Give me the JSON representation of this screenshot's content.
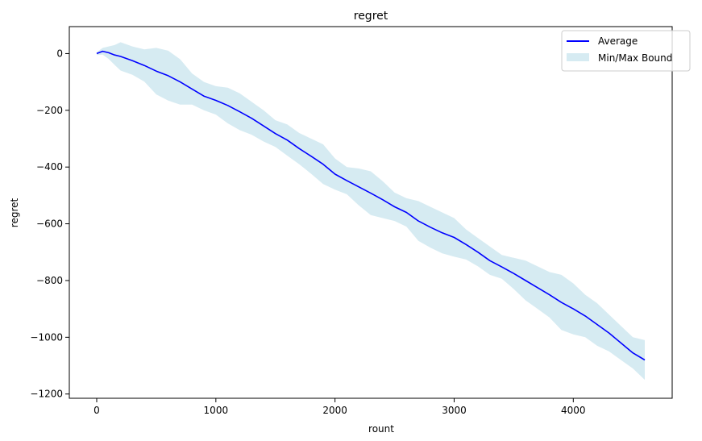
{
  "chart_data": {
    "type": "line",
    "title": "regret",
    "xlabel": "rount",
    "ylabel": "regret",
    "xlim": [
      -230,
      4830
    ],
    "ylim": [
      -1215,
      95
    ],
    "xticks": [
      0,
      1000,
      2000,
      3000,
      4000
    ],
    "xtick_labels": [
      "0",
      "1000",
      "2000",
      "3000",
      "4000"
    ],
    "yticks": [
      0,
      -200,
      -400,
      -600,
      -800,
      -1000,
      -1200
    ],
    "ytick_labels": [
      "0",
      "−200",
      "−400",
      "−600",
      "−800",
      "−1000",
      "−1200"
    ],
    "grid": false,
    "legend_position": "top-right",
    "series": [
      {
        "name": "Average",
        "kind": "line",
        "color": "#0000ff",
        "x": [
          0,
          50,
          100,
          150,
          200,
          300,
          400,
          500,
          600,
          700,
          800,
          900,
          1000,
          1100,
          1200,
          1300,
          1400,
          1500,
          1600,
          1700,
          1800,
          1900,
          2000,
          2100,
          2200,
          2300,
          2400,
          2500,
          2600,
          2700,
          2800,
          2900,
          3000,
          3100,
          3200,
          3300,
          3400,
          3500,
          3600,
          3700,
          3800,
          3900,
          4000,
          4100,
          4200,
          4300,
          4400,
          4500,
          4600
        ],
        "y": [
          0,
          8,
          3,
          -5,
          -10,
          -25,
          -42,
          -62,
          -78,
          -100,
          -125,
          -150,
          -165,
          -183,
          -205,
          -228,
          -255,
          -282,
          -305,
          -335,
          -362,
          -390,
          -425,
          -448,
          -470,
          -492,
          -515,
          -540,
          -560,
          -590,
          -612,
          -632,
          -648,
          -673,
          -700,
          -730,
          -752,
          -775,
          -800,
          -825,
          -850,
          -877,
          -900,
          -925,
          -955,
          -985,
          -1020,
          -1055,
          -1080
        ]
      },
      {
        "name": "Min/Max Bound",
        "kind": "band",
        "color": "#add8e6",
        "x": [
          0,
          50,
          100,
          150,
          200,
          300,
          400,
          500,
          600,
          700,
          800,
          900,
          1000,
          1100,
          1200,
          1300,
          1400,
          1500,
          1600,
          1700,
          1800,
          1900,
          2000,
          2100,
          2200,
          2300,
          2400,
          2500,
          2600,
          2700,
          2800,
          2900,
          3000,
          3100,
          3200,
          3300,
          3400,
          3500,
          3600,
          3700,
          3800,
          3900,
          4000,
          4100,
          4200,
          4300,
          4400,
          4500,
          4600
        ],
        "upper": [
          5,
          20,
          25,
          30,
          40,
          25,
          15,
          20,
          10,
          -20,
          -70,
          -100,
          -115,
          -120,
          -140,
          -170,
          -200,
          -235,
          -250,
          -280,
          -300,
          -320,
          -370,
          -400,
          -405,
          -415,
          -450,
          -490,
          -510,
          -520,
          -540,
          -560,
          -580,
          -620,
          -650,
          -680,
          -710,
          -720,
          -730,
          -750,
          -770,
          -780,
          -810,
          -850,
          -880,
          -920,
          -960,
          -1000,
          -1010
        ]
      }
    ]
  }
}
